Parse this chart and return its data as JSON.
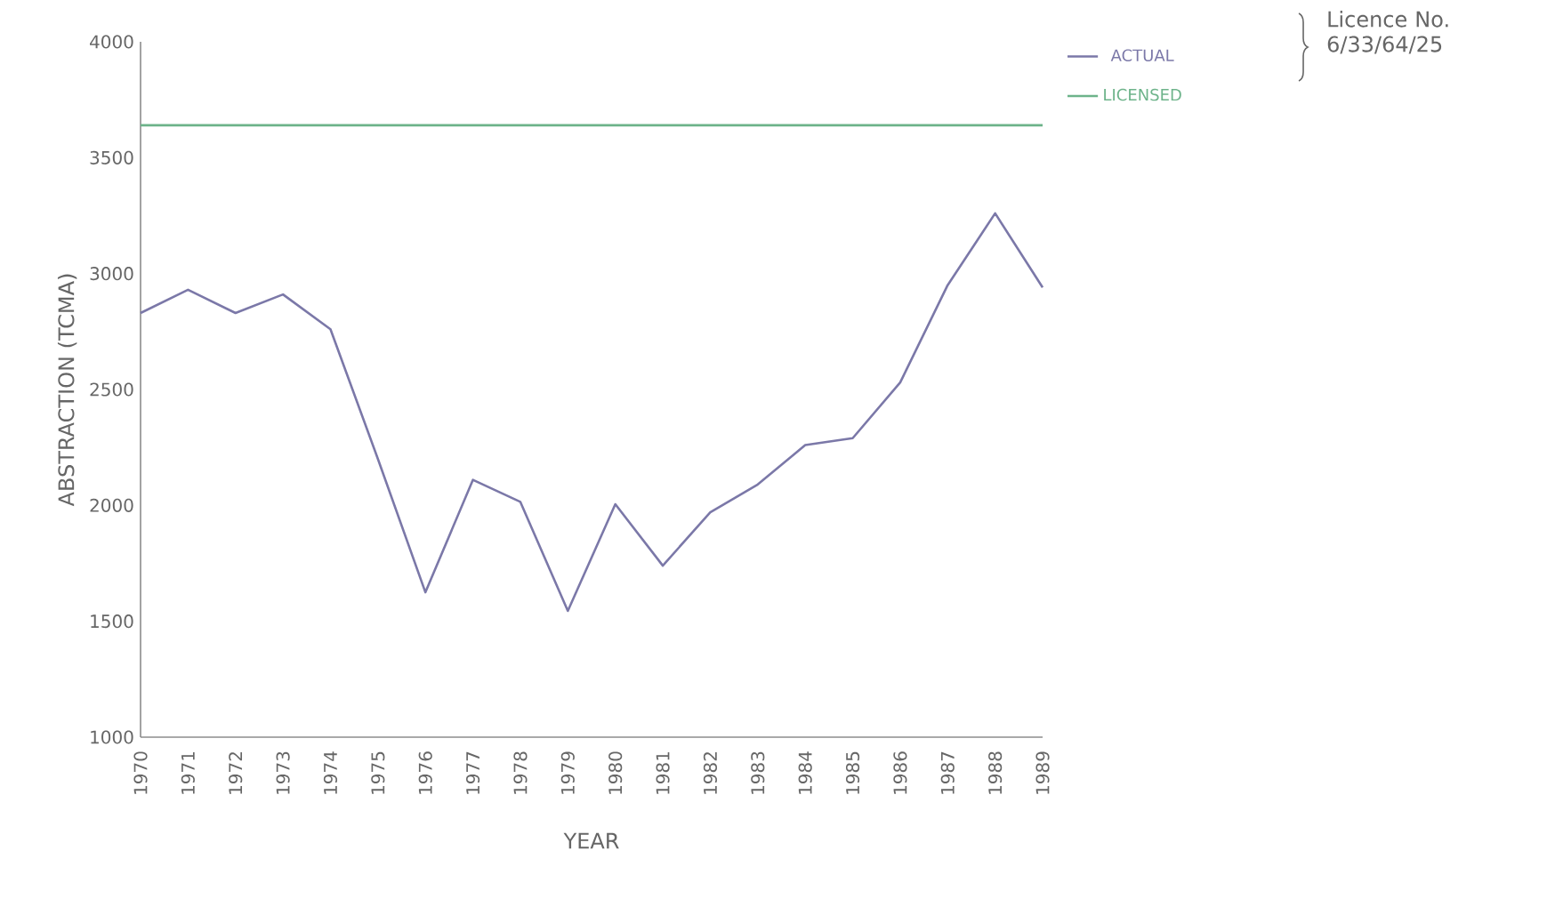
{
  "chart_data": {
    "type": "line",
    "xlabel": "YEAR",
    "ylabel": "ABSTRACTION (TCMA)",
    "categories": [
      "1970",
      "1971",
      "1972",
      "1973",
      "1974",
      "1975",
      "1976",
      "1977",
      "1978",
      "1979",
      "1980",
      "1981",
      "1982",
      "1983",
      "1984",
      "1985",
      "1986",
      "1987",
      "1988",
      "1989"
    ],
    "series": [
      {
        "name": "ACTUAL",
        "color": "#7b78a8",
        "values": [
          2830,
          2930,
          2830,
          2910,
          2760,
          2200,
          1625,
          2110,
          2015,
          1545,
          2005,
          1740,
          1970,
          2090,
          2260,
          2290,
          2530,
          2950,
          3260,
          2940
        ]
      },
      {
        "name": "LICENSED",
        "color": "#6db38a",
        "values": [
          3640,
          3640,
          3640,
          3640,
          3640,
          3640,
          3640,
          3640,
          3640,
          3640,
          3640,
          3640,
          3640,
          3640,
          3640,
          3640,
          3640,
          3640,
          3640,
          3640
        ]
      }
    ],
    "ylim": [
      1000,
      4000
    ],
    "yticks": [
      1000,
      1500,
      2000,
      2500,
      3000,
      3500,
      4000
    ],
    "legend": "top right",
    "grid": false,
    "marker": "none",
    "line_style": "solid",
    "annotations": [
      "Licence No. 6/33/64/25"
    ]
  }
}
